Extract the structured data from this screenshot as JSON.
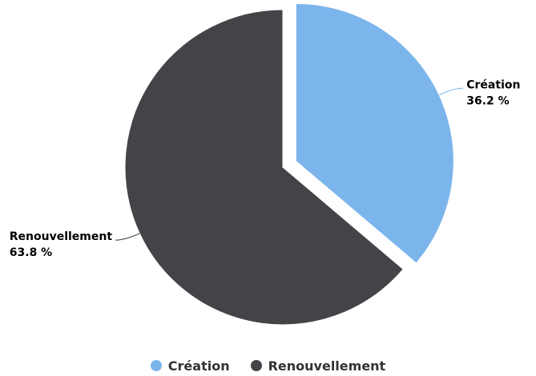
{
  "chart_data": {
    "type": "pie",
    "title": "",
    "slices": [
      {
        "name": "Création",
        "value": 36.2,
        "label_value": "36.2 %",
        "color": "#7cb5ec",
        "sliced": true
      },
      {
        "name": "Renouvellement",
        "value": 63.8,
        "label_value": "63.8 %",
        "color": "#434348",
        "sliced": false
      }
    ],
    "legend": {
      "placement": "bottom-center",
      "items": [
        "Création",
        "Renouvellement"
      ]
    }
  }
}
